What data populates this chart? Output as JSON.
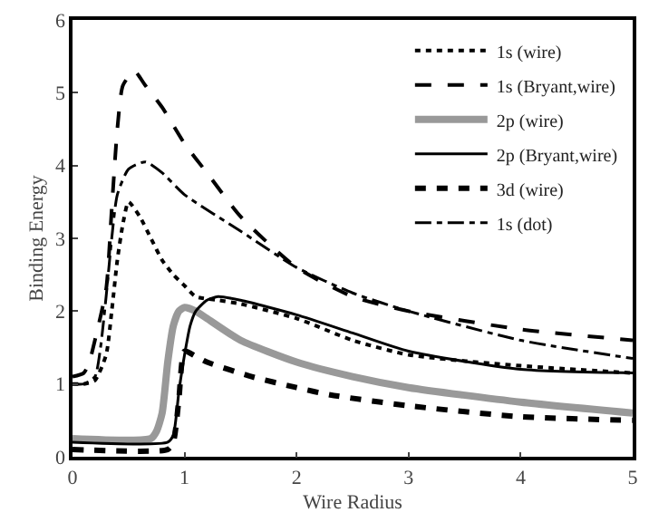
{
  "chart_data": {
    "type": "line",
    "xlabel": "Wire Radius",
    "ylabel": "Binding Energy",
    "xlim": [
      0,
      5
    ],
    "ylim": [
      0,
      6
    ],
    "xticks": [
      0,
      1,
      2,
      3,
      4,
      5
    ],
    "yticks": [
      0,
      1,
      2,
      3,
      4,
      5,
      6
    ],
    "legend": "top right",
    "marker": "none",
    "series": [
      {
        "name": "1s (wire)",
        "color": "#000000",
        "line_style": "dotted",
        "x": [
          0,
          0.1,
          0.2,
          0.3,
          0.35,
          0.4,
          0.45,
          0.5,
          0.6,
          0.7,
          0.8,
          0.9,
          1.0,
          1.1,
          1.3,
          1.5,
          2,
          2.5,
          3,
          4,
          5
        ],
        "values": [
          1.0,
          1.0,
          1.05,
          1.4,
          2.0,
          2.7,
          3.2,
          3.5,
          3.3,
          3.0,
          2.7,
          2.5,
          2.35,
          2.2,
          2.15,
          2.1,
          1.9,
          1.6,
          1.4,
          1.25,
          1.15
        ]
      },
      {
        "name": "1s (Bryant,wire)",
        "color": "#000000",
        "line_style": "dashed",
        "x": [
          0,
          0.1,
          0.15,
          0.2,
          0.3,
          0.35,
          0.4,
          0.45,
          0.55,
          0.65,
          0.8,
          1.0,
          1.2,
          1.5,
          2,
          2.5,
          3,
          4,
          5
        ],
        "values": [
          1.1,
          1.15,
          1.3,
          1.6,
          2.3,
          3.4,
          4.5,
          5.1,
          5.3,
          5.1,
          4.8,
          4.3,
          3.9,
          3.3,
          2.6,
          2.2,
          2.0,
          1.75,
          1.6
        ]
      },
      {
        "name": "2p (wire)",
        "color": "#999999",
        "line_style": "solid",
        "x": [
          0,
          0.7,
          0.75,
          0.8,
          0.85,
          0.9,
          0.95,
          1.0,
          1.1,
          1.2,
          1.5,
          2,
          2.5,
          3,
          4,
          5
        ],
        "values": [
          0.25,
          0.25,
          0.35,
          0.6,
          1.3,
          1.8,
          2.0,
          2.05,
          2.0,
          1.9,
          1.6,
          1.3,
          1.1,
          0.95,
          0.75,
          0.6
        ]
      },
      {
        "name": "2p (Bryant,wire)",
        "color": "#000000",
        "line_style": "solid",
        "x": [
          0,
          0.85,
          0.9,
          0.95,
          1.0,
          1.05,
          1.1,
          1.2,
          1.3,
          1.5,
          2,
          2.5,
          3,
          4,
          5
        ],
        "values": [
          0.2,
          0.2,
          0.3,
          0.9,
          1.4,
          1.8,
          2.0,
          2.15,
          2.2,
          2.15,
          1.95,
          1.7,
          1.45,
          1.2,
          1.15
        ]
      },
      {
        "name": "3d (wire)",
        "color": "#000000",
        "line_style": "dashed",
        "x": [
          0,
          0.85,
          0.9,
          0.95,
          1.0,
          1.1,
          1.2,
          1.6,
          2,
          2.3,
          3,
          4,
          5
        ],
        "values": [
          0.1,
          0.1,
          0.2,
          0.8,
          1.45,
          1.38,
          1.3,
          1.1,
          0.95,
          0.85,
          0.7,
          0.55,
          0.5
        ]
      },
      {
        "name": "1s (dot)",
        "color": "#000000",
        "line_style": "dashdot",
        "x": [
          0,
          0.1,
          0.2,
          0.25,
          0.3,
          0.35,
          0.4,
          0.5,
          0.65,
          0.8,
          1.0,
          1.5,
          2,
          2.5,
          3,
          4,
          5
        ],
        "values": [
          1.0,
          1.0,
          1.1,
          1.5,
          2.2,
          3.0,
          3.6,
          3.95,
          4.05,
          3.9,
          3.6,
          3.1,
          2.6,
          2.25,
          2.0,
          1.6,
          1.35
        ]
      }
    ]
  }
}
